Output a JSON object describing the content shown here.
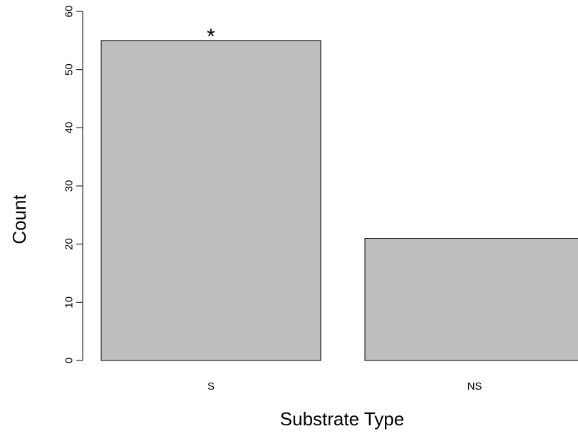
{
  "chart_data": {
    "type": "bar",
    "categories": [
      "S",
      "NS"
    ],
    "values": [
      55,
      21
    ],
    "xlabel": "Substrate Type",
    "ylabel": "Count",
    "ylim": [
      0,
      60
    ],
    "yticks": [
      0,
      10,
      20,
      30,
      40,
      50,
      60
    ],
    "annotations": [
      {
        "category": "S",
        "text": "*"
      }
    ],
    "bar_fill": "#bebebe",
    "bar_stroke": "#000000",
    "grid": false,
    "legend": "none"
  }
}
